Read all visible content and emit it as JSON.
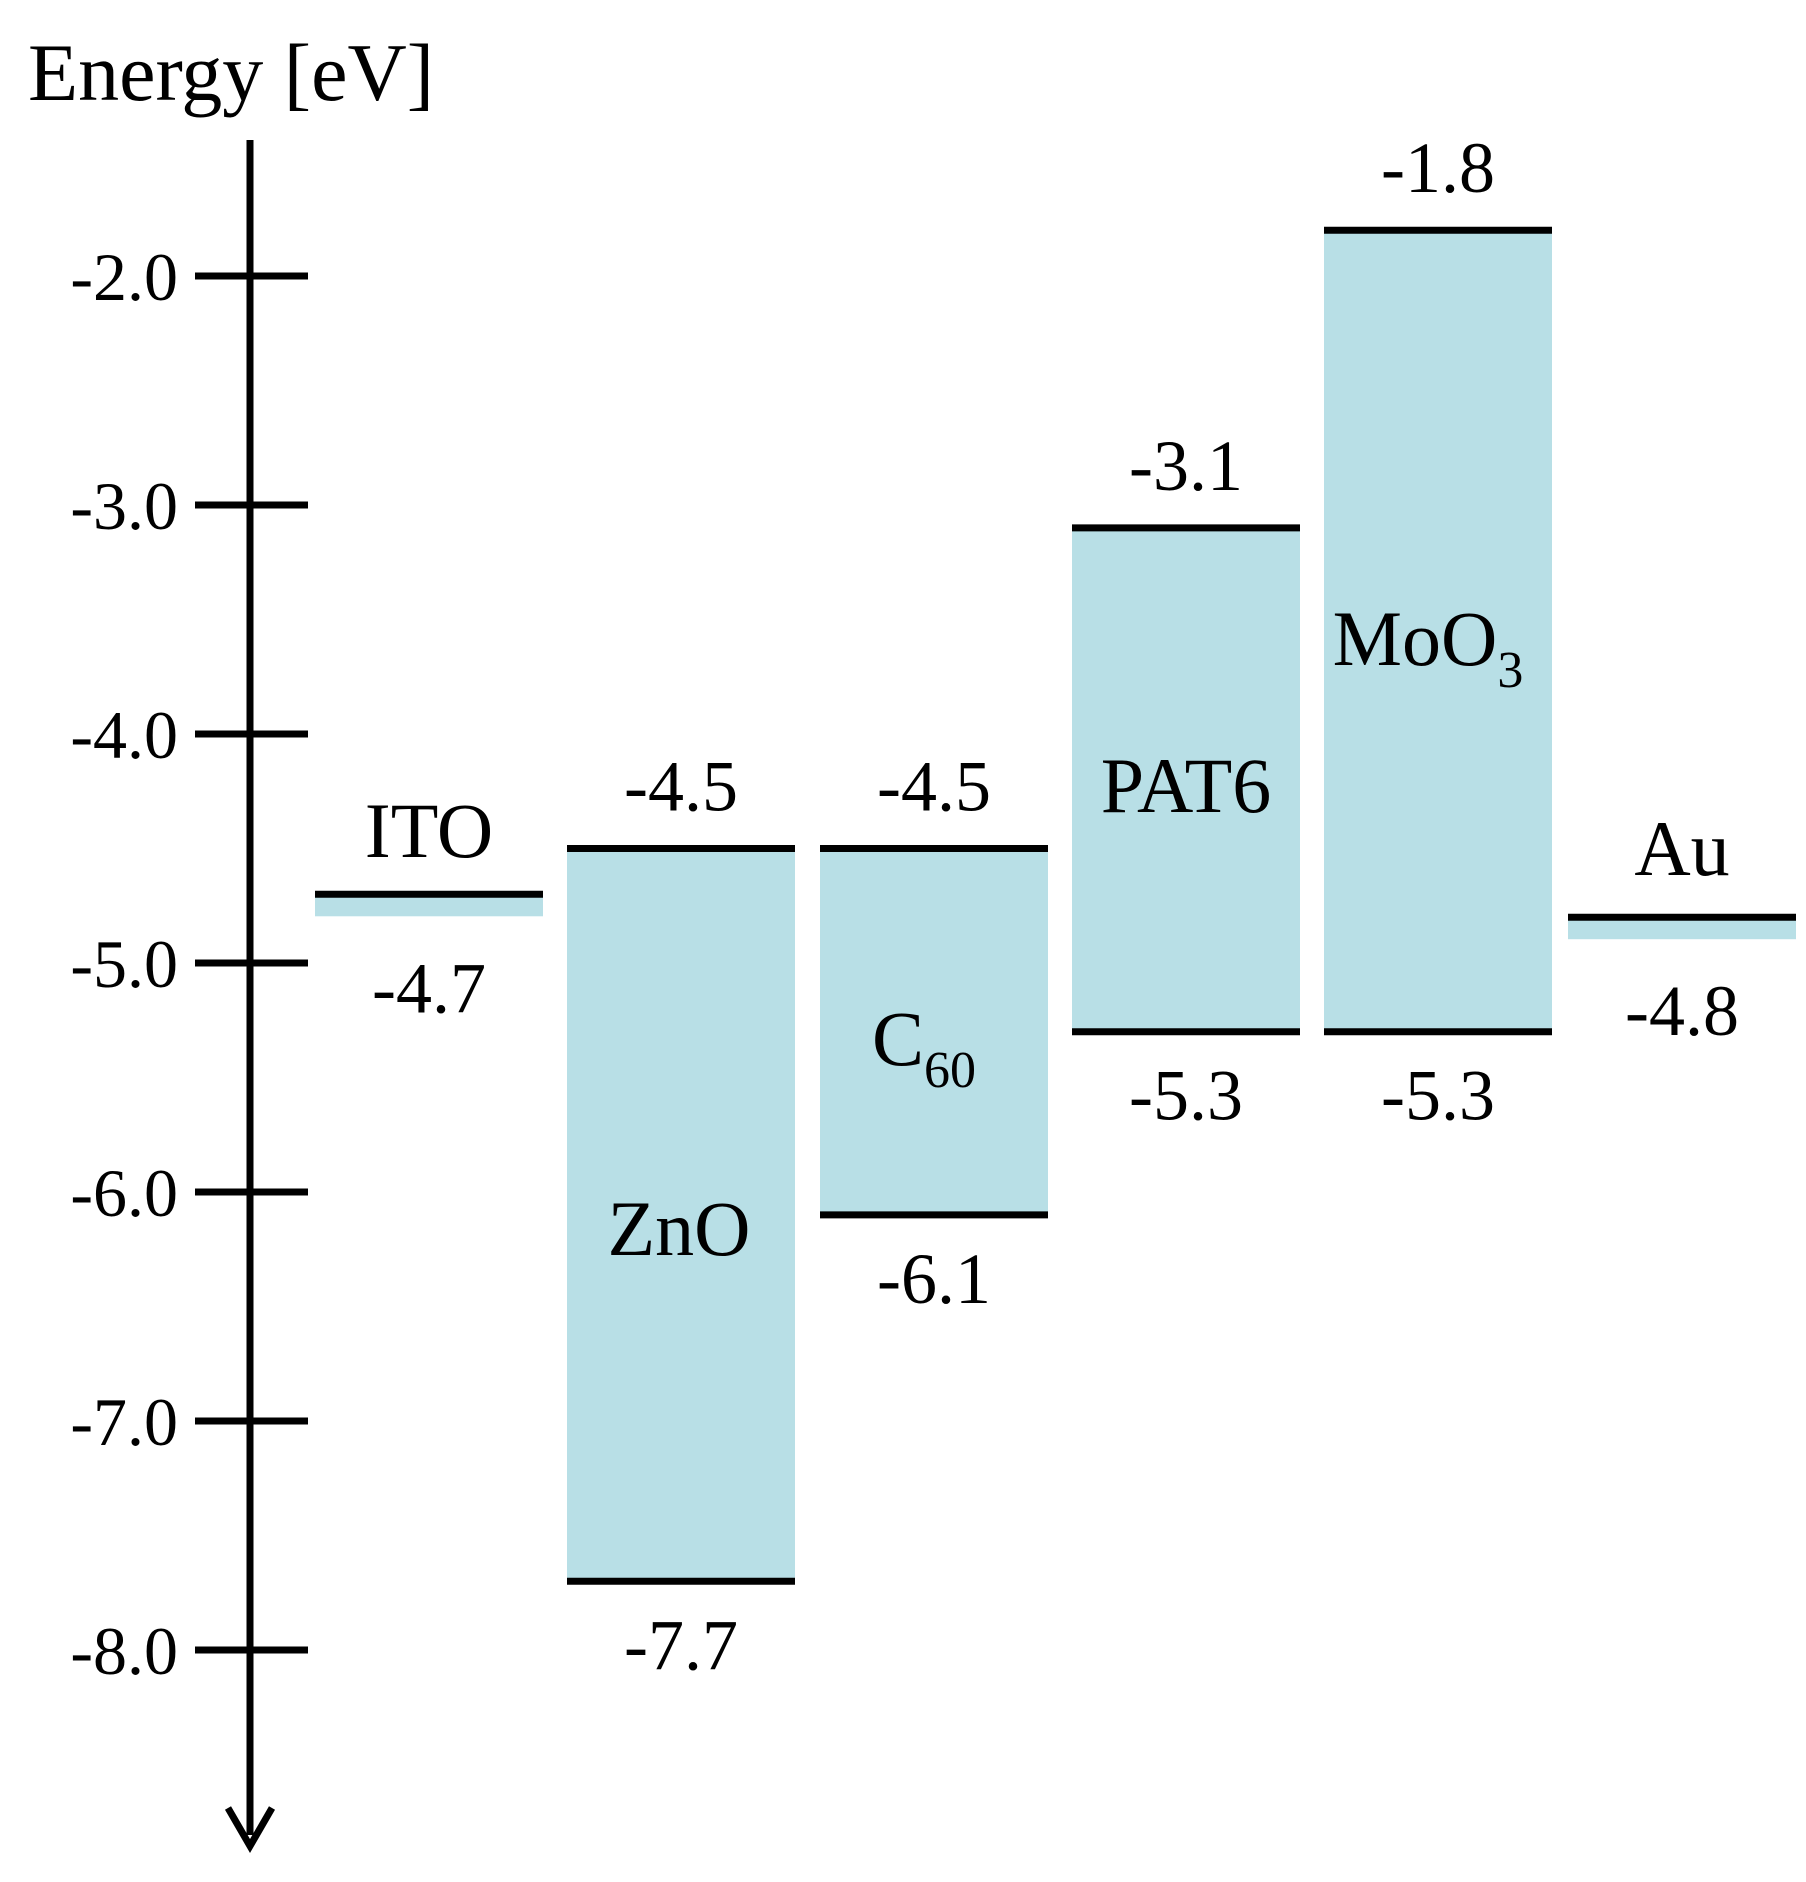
{
  "axis": {
    "title": "Energy [eV]",
    "ticks": [
      {
        "value": -2.0,
        "label": "-2.0"
      },
      {
        "value": -3.0,
        "label": "-3.0"
      },
      {
        "value": -4.0,
        "label": "-4.0"
      },
      {
        "value": -5.0,
        "label": "-5.0"
      },
      {
        "value": -6.0,
        "label": "-6.0"
      },
      {
        "value": -7.0,
        "label": "-7.0"
      },
      {
        "value": -8.0,
        "label": "-8.0"
      }
    ]
  },
  "colors": {
    "band_fill": "#b8dfe6",
    "line": "#000000",
    "background": "#ffffff"
  },
  "materials": [
    {
      "id": "ito",
      "name": "ITO",
      "type": "electrode",
      "level": -4.7,
      "level_label": "-4.7"
    },
    {
      "id": "zno",
      "name": "ZnO",
      "type": "band",
      "top": -4.5,
      "bottom": -7.7,
      "top_label": "-4.5",
      "bottom_label": "-7.7"
    },
    {
      "id": "c60",
      "name": "C",
      "name_sub": "60",
      "type": "band",
      "top": -4.5,
      "bottom": -6.1,
      "top_label": "-4.5",
      "bottom_label": "-6.1"
    },
    {
      "id": "pat6",
      "name": "PAT6",
      "type": "band",
      "top": -3.1,
      "bottom": -5.3,
      "top_label": "-3.1",
      "bottom_label": "-5.3"
    },
    {
      "id": "moo3",
      "name": "MoO",
      "name_sub": "3",
      "type": "band",
      "top": -1.8,
      "bottom": -5.3,
      "top_label": "-1.8",
      "bottom_label": "-5.3"
    },
    {
      "id": "au",
      "name": "Au",
      "type": "electrode",
      "level": -4.8,
      "level_label": "-4.8"
    }
  ]
}
